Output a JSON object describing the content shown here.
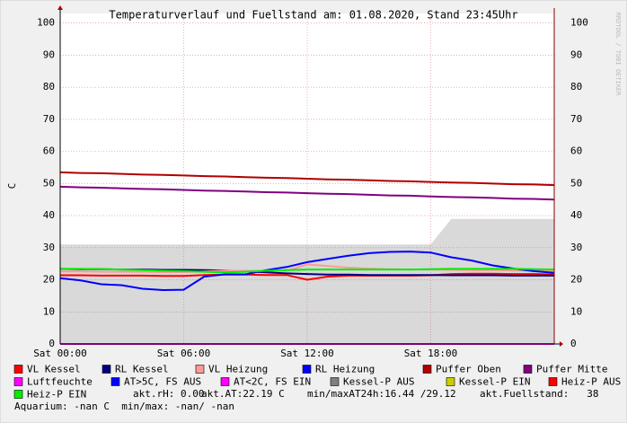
{
  "chart_data": {
    "type": "line",
    "title": "Temperaturverlauf und Fuellstand am: 01.08.2020, Stand 23:45Uhr",
    "ylabel": "C",
    "side_text": "RRDTOOL / TOBI OETIKER",
    "x": [
      0,
      1,
      2,
      3,
      4,
      5,
      6,
      7,
      8,
      9,
      10,
      11,
      12,
      13,
      14,
      15,
      16,
      17,
      18,
      19,
      20,
      21,
      22,
      23,
      24
    ],
    "xlim": [
      0,
      24
    ],
    "xticks": [
      {
        "value": 0,
        "label": "Sat 00:00"
      },
      {
        "value": 6,
        "label": "Sat 06:00"
      },
      {
        "value": 12,
        "label": "Sat 12:00"
      },
      {
        "value": 18,
        "label": "Sat 18:00"
      }
    ],
    "ylim": [
      0,
      103
    ],
    "yticks": [
      0,
      10,
      20,
      30,
      40,
      50,
      60,
      70,
      80,
      90,
      100
    ],
    "grid": true,
    "series": [
      {
        "name": "VL Kessel",
        "color": "#ff0000",
        "values": [
          21.4,
          21.4,
          21.3,
          21.3,
          21.3,
          21.2,
          21.2,
          21.5,
          21.6,
          21.6,
          21.5,
          21.5,
          20.0,
          21.0,
          21.3,
          21.3,
          21.3,
          21.3,
          21.4,
          21.8,
          21.9,
          21.9,
          21.8,
          21.8,
          21.7
        ]
      },
      {
        "name": "RL Kessel",
        "color": "#000080",
        "values": [
          23.4,
          23.3,
          23.3,
          23.2,
          23.2,
          23.1,
          23.1,
          23.0,
          22.9,
          22.6,
          22.3,
          22.0,
          21.8,
          21.6,
          21.6,
          21.5,
          21.5,
          21.5,
          21.5,
          21.4,
          21.4,
          21.4,
          21.3,
          21.3,
          21.3
        ]
      },
      {
        "name": "VL Heizung",
        "color": "#ff9999",
        "values": [
          22.6,
          22.6,
          22.5,
          22.5,
          22.5,
          22.4,
          22.4,
          22.6,
          22.8,
          22.8,
          22.8,
          22.8,
          24.8,
          24.3,
          23.8,
          23.5,
          23.3,
          23.2,
          23.2,
          23.1,
          23.0,
          23.0,
          22.9,
          22.9,
          22.8
        ]
      },
      {
        "name": "RL Heizung",
        "color": "#0000ff",
        "values": [
          20.5,
          19.8,
          18.6,
          18.3,
          17.2,
          16.8,
          16.9,
          21.0,
          21.7,
          21.7,
          23.0,
          24.0,
          25.5,
          26.5,
          27.5,
          28.3,
          28.7,
          28.8,
          28.5,
          27.0,
          26.0,
          24.5,
          23.5,
          22.7,
          22.2
        ]
      },
      {
        "name": "Puffer Oben",
        "color": "#b00000",
        "values": [
          53.5,
          53.3,
          53.2,
          53.0,
          52.8,
          52.7,
          52.5,
          52.3,
          52.2,
          52.0,
          51.8,
          51.7,
          51.5,
          51.3,
          51.2,
          51.0,
          50.8,
          50.7,
          50.5,
          50.3,
          50.2,
          50.0,
          49.8,
          49.7,
          49.5
        ]
      },
      {
        "name": "Puffer Mitte",
        "color": "#800080",
        "values": [
          49.0,
          48.8,
          48.7,
          48.5,
          48.3,
          48.2,
          48.0,
          47.8,
          47.7,
          47.5,
          47.3,
          47.2,
          47.0,
          46.8,
          46.7,
          46.5,
          46.3,
          46.2,
          46.0,
          45.8,
          45.7,
          45.5,
          45.3,
          45.2,
          45.0
        ]
      },
      {
        "name": "Luftfeuchte",
        "color": "#ff00ff",
        "values": [
          0,
          0,
          0,
          0,
          0,
          0,
          0,
          0,
          0,
          0,
          0,
          0,
          0,
          0,
          0,
          0,
          0,
          0,
          0,
          0,
          0,
          0,
          0,
          0,
          0
        ]
      },
      {
        "name": "AT>5C, FS AUS",
        "color": "#0000ff",
        "values": [
          null,
          null,
          null,
          null,
          null,
          null,
          null,
          null,
          null,
          null,
          null,
          null,
          null,
          null,
          null,
          null,
          null,
          null,
          null,
          null,
          null,
          null,
          null,
          null,
          null
        ]
      },
      {
        "name": "AT<2C, FS EIN",
        "color": "#ff00ff",
        "values": [
          null,
          null,
          null,
          null,
          null,
          null,
          null,
          null,
          null,
          null,
          null,
          null,
          null,
          null,
          null,
          null,
          null,
          null,
          null,
          null,
          null,
          null,
          null,
          null,
          null
        ]
      },
      {
        "name": "Kessel-P AUS",
        "color": "#808080",
        "kind": "area",
        "values": [
          31,
          31,
          31,
          31,
          31,
          31,
          31,
          31,
          31,
          31,
          31,
          31,
          31,
          31,
          31,
          31,
          31,
          31,
          31,
          39,
          39,
          39,
          39,
          39,
          39
        ]
      },
      {
        "name": "Kessel-P EIN",
        "color": "#cccc00",
        "values": [
          null,
          null,
          null,
          null,
          null,
          null,
          null,
          null,
          null,
          null,
          null,
          null,
          null,
          null,
          null,
          null,
          null,
          null,
          null,
          null,
          null,
          null,
          null,
          null,
          null
        ]
      },
      {
        "name": "Heiz-P AUS",
        "color": "#ff0000",
        "values": [
          null,
          null,
          null,
          null,
          null,
          null,
          null,
          null,
          null,
          null,
          null,
          null,
          null,
          null,
          null,
          null,
          null,
          null,
          null,
          null,
          null,
          null,
          null,
          null,
          null
        ]
      },
      {
        "name": "Heiz-P EIN",
        "color": "#00ee00",
        "values": [
          23.4,
          23.4,
          23.3,
          23.2,
          23.0,
          22.8,
          22.7,
          22.5,
          22.3,
          22.5,
          22.8,
          23.0,
          23.2,
          23.2,
          23.2,
          23.2,
          23.2,
          23.2,
          23.3,
          23.4,
          23.4,
          23.4,
          23.4,
          23.3,
          23.2
        ]
      }
    ],
    "annotations": [
      "akt.rH: 0.00",
      "akt.AT:22.19 C",
      "min/maxAT24h:16.44 /29.12",
      "akt.Fuellstand:   38",
      "Aquarium: -nan C  min/max: -nan/ -nan"
    ]
  }
}
